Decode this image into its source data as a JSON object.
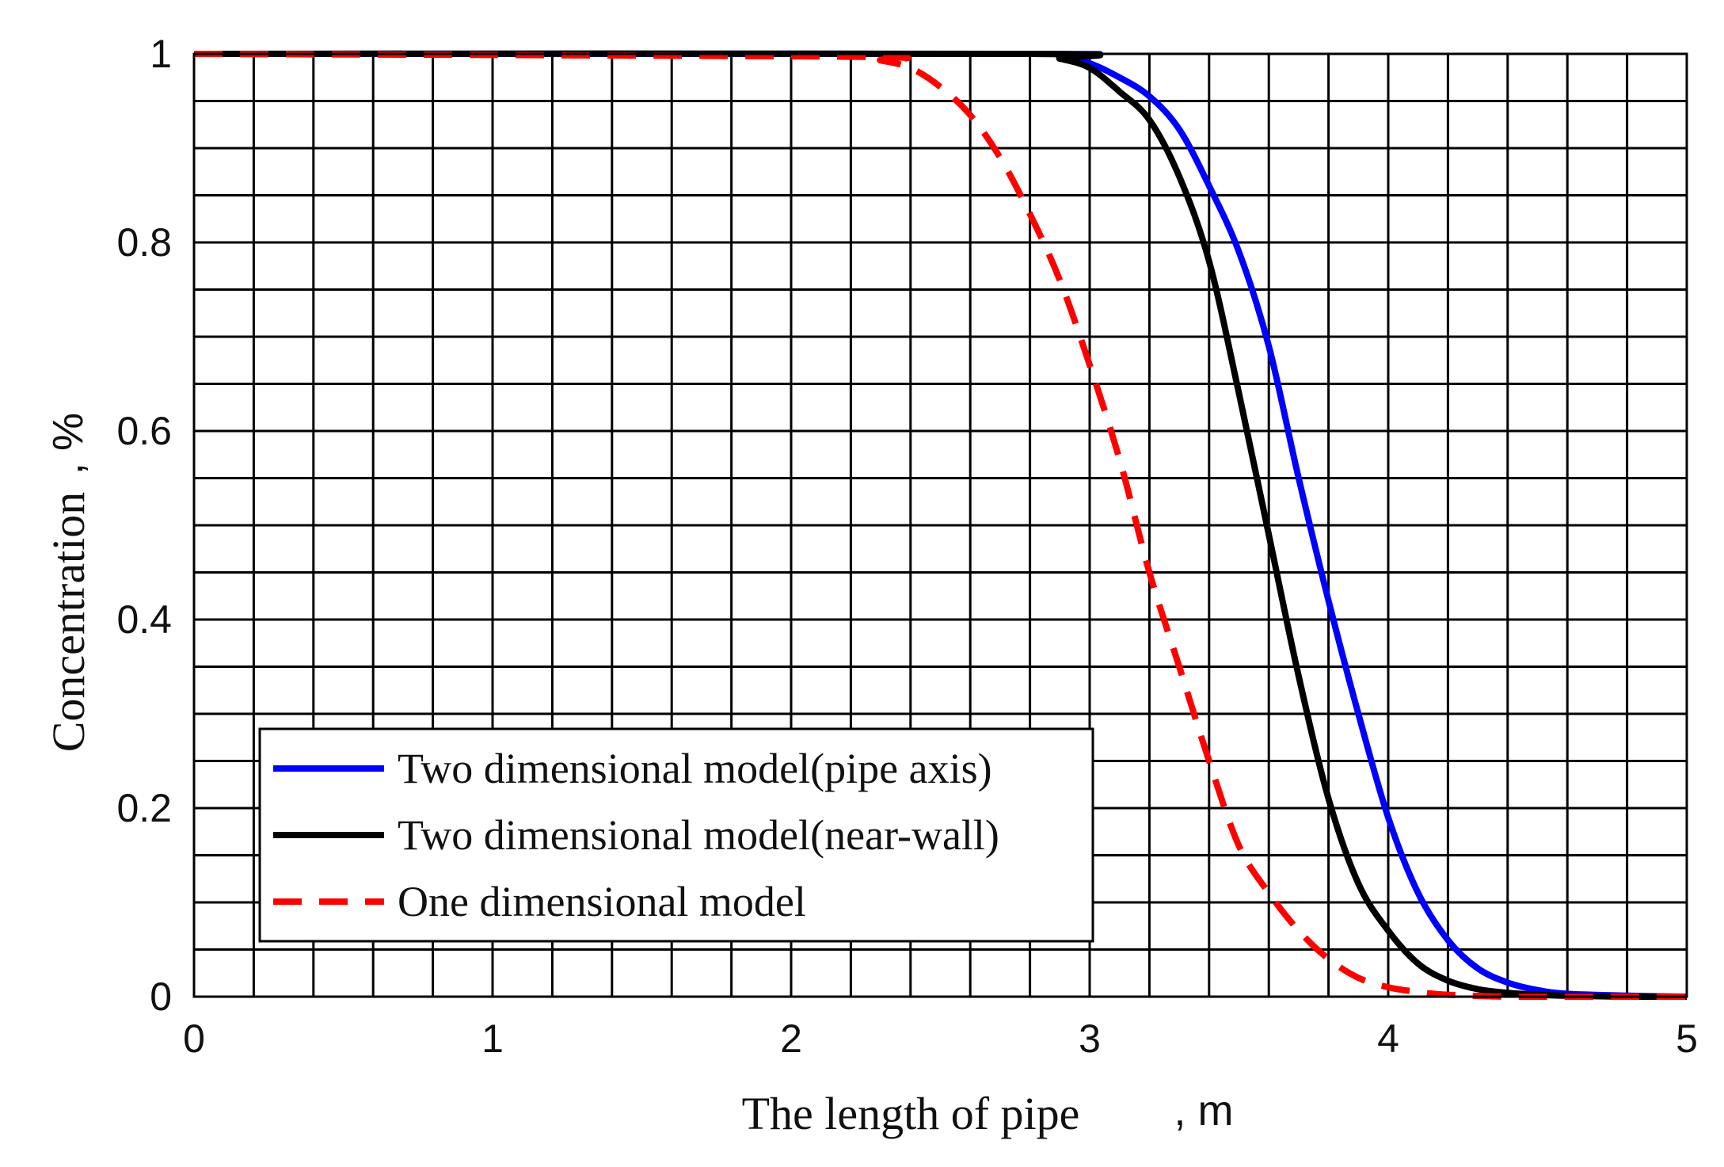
{
  "chart_data": {
    "type": "line",
    "title": "",
    "xlabel": "The length of pipe",
    "xlabel_unit": ", m",
    "ylabel": "Concentration",
    "ylabel_unit": ", %",
    "xlim": [
      0,
      5
    ],
    "ylim": [
      0,
      1
    ],
    "x_ticks": [
      0,
      1,
      2,
      3,
      4,
      5
    ],
    "x_tick_labels": [
      "0",
      "1",
      "2",
      "3",
      "4",
      "5"
    ],
    "y_ticks": [
      0,
      0.2,
      0.4,
      0.6,
      0.8,
      1
    ],
    "y_tick_labels": [
      "0",
      "0.2",
      "0.4",
      "0.6",
      "0.8",
      "1"
    ],
    "grid": true,
    "grid_x_step": 0.2,
    "grid_y_step": 0.05,
    "legend_position": "bottom-left",
    "series": [
      {
        "name": "Two dimensional model(pipe axis)",
        "color": "#0000ff",
        "style": "solid",
        "x": [
          0,
          2.8,
          2.9,
          3.0,
          3.1,
          3.2,
          3.3,
          3.4,
          3.5,
          3.6,
          3.7,
          3.8,
          3.9,
          4.0,
          4.1,
          4.2,
          4.3,
          4.4,
          4.5,
          4.6,
          4.8,
          5.0
        ],
        "y": [
          1.0,
          1.0,
          0.998,
          0.99,
          0.975,
          0.955,
          0.92,
          0.86,
          0.79,
          0.69,
          0.55,
          0.42,
          0.3,
          0.19,
          0.11,
          0.06,
          0.03,
          0.015,
          0.007,
          0.003,
          0.001,
          0.0
        ]
      },
      {
        "name": "Two dimensional model(near-wall)",
        "color": "#000000",
        "style": "solid",
        "x": [
          0,
          2.8,
          2.9,
          3.0,
          3.1,
          3.2,
          3.3,
          3.4,
          3.5,
          3.6,
          3.7,
          3.8,
          3.9,
          4.0,
          4.1,
          4.2,
          4.3,
          4.4,
          4.5,
          4.6,
          4.8,
          5.0
        ],
        "y": [
          1.0,
          1.0,
          0.995,
          0.985,
          0.96,
          0.93,
          0.87,
          0.78,
          0.64,
          0.49,
          0.34,
          0.21,
          0.12,
          0.07,
          0.035,
          0.017,
          0.008,
          0.004,
          0.002,
          0.001,
          0.0,
          0.0
        ]
      },
      {
        "name": "One dimensional model",
        "color": "#ff0000",
        "style": "dashed",
        "x": [
          0,
          2.2,
          2.3,
          2.4,
          2.5,
          2.6,
          2.7,
          2.8,
          2.9,
          3.0,
          3.1,
          3.2,
          3.3,
          3.4,
          3.5,
          3.6,
          3.7,
          3.8,
          3.9,
          4.0,
          4.1,
          4.2,
          4.4,
          4.6,
          5.0
        ],
        "y": [
          1.0,
          0.997,
          0.993,
          0.985,
          0.965,
          0.935,
          0.89,
          0.83,
          0.76,
          0.67,
          0.57,
          0.45,
          0.35,
          0.25,
          0.16,
          0.11,
          0.07,
          0.04,
          0.02,
          0.01,
          0.005,
          0.002,
          0.0,
          0.0,
          0.0
        ]
      }
    ]
  }
}
